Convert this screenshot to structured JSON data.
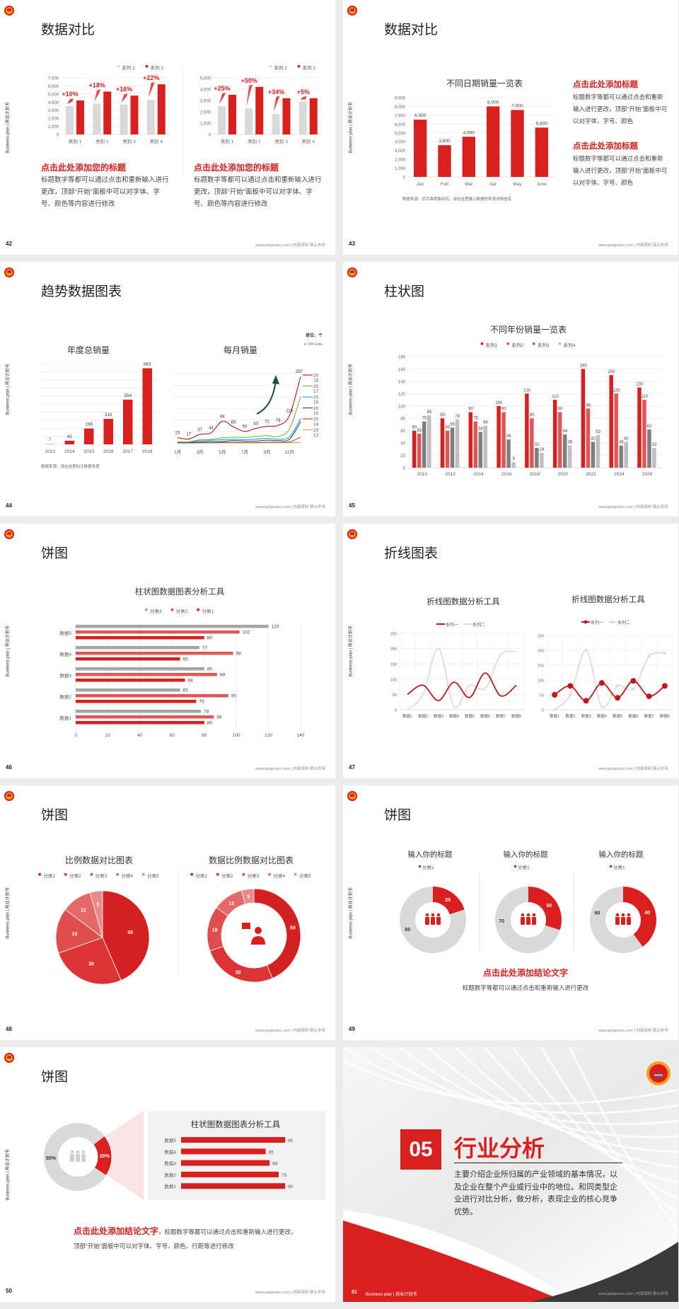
{
  "common": {
    "side_label": "Business plan | 商业计划书",
    "footer": "www.pptgenius.com | 内部资料 禁止外传"
  },
  "colors": {
    "red": "#d9201f",
    "red_mid": "#e35656",
    "gray_light": "#d9d9d9",
    "gray_dark": "#808080",
    "gray_mid": "#bfbfbf",
    "dark": "#3a3a3a"
  },
  "slides": [
    {
      "page": "42",
      "title": "数据对比",
      "left": {
        "heading": "点击此处添加您的标题",
        "body": "标题数字等都可以通过点击和重新输入进行更改，顶部“开始”面板中可以对字体、字号、颜色等内容进行修改"
      },
      "right": {
        "heading": "点击此处添加您的标题",
        "body": "标题数字等都可以通过点击和重新输入进行更改，顶部“开始”面板中可以对字体、字号、颜色等内容进行修改"
      }
    },
    {
      "page": "43",
      "title": "数据对比",
      "blocks": [
        {
          "heading": "点击此处添加标题",
          "body": "标题数字等都可以通过点击和重新输入进行更改，顶部“开始”面板中可以对字体、字号、颜色"
        },
        {
          "heading": "点击此处添加标题",
          "body": "标题数字等都可以通过点击和重新输入进行更改，顶部“开始”面板中可以对字体、字号、颜色"
        }
      ]
    },
    {
      "page": "44",
      "title": "趋势数据图表"
    },
    {
      "page": "45",
      "title": "柱状图"
    },
    {
      "page": "46",
      "title": "饼图"
    },
    {
      "page": "47",
      "title": "折线图表"
    },
    {
      "page": "48",
      "title": "饼图"
    },
    {
      "page": "49",
      "title": "饼图",
      "conclusion": "点击此处添加结论文字",
      "conclusion_body": "标题数字等都可以通过点击和重新输入进行更改"
    },
    {
      "page": "50",
      "title": "饼图",
      "conclusion": "点击此处添加结论文字",
      "conclusion_body": "，标题数字等都可以通过点击和重新输入进行更改，顶部“开始”面板中可以对字体、字号、颜色、行距等进行修改"
    },
    {
      "page": "51",
      "number": "05",
      "title": "行业分析",
      "body": "主要介绍企业所归属的产业领域的基本情况，以及企业在整个产业或行业中的地位。和同类型企业进行对比分析，做分析，表现企业的核心竞争优势。",
      "footer_left": "Business plan | 商业计划书"
    }
  ],
  "chart_data": [
    {
      "type": "bar",
      "categories": [
        "类别 1",
        "类别 2",
        "类别 3",
        "类别 4"
      ],
      "ylim": [
        0,
        7000
      ],
      "yticks": [
        "0",
        "1,000",
        "2,000",
        "3,000",
        "4,000",
        "5,000",
        "6,000",
        "7,000"
      ],
      "series": [
        {
          "name": "系列 1",
          "values": [
            3500,
            3800,
            3700,
            4300
          ]
        },
        {
          "name": "系列 2",
          "values": [
            4200,
            5300,
            4800,
            6200
          ]
        }
      ],
      "annotations": [
        "+10%",
        "+18%",
        "+16%",
        "+22%"
      ],
      "legend": "top-right"
    },
    {
      "type": "bar",
      "categories": [
        "类别 1",
        "类别 2",
        "类别 3",
        "类别 4"
      ],
      "ylim": [
        0,
        5000
      ],
      "yticks": [
        "0",
        "1,000",
        "2,000",
        "3,000",
        "4,000",
        "5,000"
      ],
      "series": [
        {
          "name": "系列 1",
          "values": [
            2500,
            2300,
            1800,
            2900
          ]
        },
        {
          "name": "系列 2",
          "values": [
            3500,
            4200,
            3200,
            3200
          ]
        }
      ],
      "annotations": [
        "+25%",
        "+50%",
        "+34%",
        "+5%"
      ],
      "legend": "top-right"
    },
    {
      "type": "bar",
      "title": "不同日期销量一览表",
      "categories": [
        "Jan",
        "Feb",
        "Mar",
        "Apr",
        "May",
        "June"
      ],
      "values": [
        6500,
        3600,
        4560,
        8000,
        7600,
        5600
      ],
      "labels": [
        "6,500",
        "3,600",
        "4,560",
        "8,000",
        "7,600",
        "5,600"
      ],
      "ylim": [
        0,
        9000
      ],
      "yticks": [
        "0",
        "1,000",
        "2,000",
        "3,000",
        "4,000",
        "5,000",
        "6,000",
        "7,000",
        "8,000",
        "9,000"
      ],
      "source": "数据来源：尼尔森零售研究，请在这里输入数据的来源详情信息"
    },
    {
      "type": "bar",
      "title": "年度总销量",
      "categories": [
        "2013",
        "2014",
        "2015",
        "2016",
        "2017",
        "2018"
      ],
      "values": [
        7,
        45,
        196,
        316,
        554,
        943
      ],
      "ylim": [
        0,
        1000
      ],
      "grid": true,
      "source": "数据来源：请在这里标注数据来源"
    },
    {
      "type": "line",
      "title": "每月销量",
      "unit": "单位：个",
      "unit_sub": "in '000 units",
      "xticks": [
        "1月",
        "3月",
        "5月",
        "7月",
        "9月",
        "11月"
      ],
      "ylim": [
        0,
        300
      ],
      "grid": true,
      "series": [
        {
          "name": "2018",
          "color": "#c0161c",
          "values": [
            23,
            17,
            37,
            44,
            94,
            69,
            50,
            63,
            72,
            76,
            118,
            287
          ]
        },
        {
          "name": "2017",
          "color": "#7ab648",
          "values": [
            5,
            5,
            14,
            16,
            22,
            25,
            24,
            28,
            32,
            28,
            60,
            200
          ]
        },
        {
          "name": "2016",
          "color": "#2aa3d8",
          "values": [
            4,
            4,
            10,
            12,
            14,
            16,
            14,
            16,
            20,
            16,
            26,
            105
          ]
        },
        {
          "name": "2015",
          "color": "#1d4e89",
          "values": [
            2,
            2,
            4,
            6,
            6,
            10,
            8,
            8,
            12,
            10,
            16,
            92
          ]
        },
        {
          "name": "2014",
          "color": "#a0522d",
          "values": [
            0,
            0,
            1,
            1,
            2,
            2,
            2,
            2,
            3,
            3,
            4,
            25
          ]
        },
        {
          "name": "2013",
          "color": "#f0a030",
          "values": [
            0,
            0,
            0,
            0,
            0,
            0,
            0,
            0,
            1,
            1,
            1,
            2
          ]
        }
      ],
      "legend": "right"
    },
    {
      "type": "bar",
      "title": "不同年份销量一览表",
      "categories": [
        "2010",
        "2012",
        "2014",
        "2016",
        "2018",
        "2020",
        "2022",
        "2024",
        "2026"
      ],
      "ylim": [
        0,
        180
      ],
      "yticks": [
        "0",
        "20",
        "40",
        "60",
        "80",
        "100",
        "120",
        "140",
        "160",
        "180"
      ],
      "series": [
        {
          "name": "系列1",
          "values": [
            60,
            80,
            90,
            100,
            120,
            110,
            160,
            150,
            130
          ]
        },
        {
          "name": "系列2",
          "values": [
            55,
            60,
            75,
            90,
            80,
            90,
            96,
            120,
            110
          ]
        },
        {
          "name": "系列3",
          "values": [
            75,
            65,
            58,
            46,
            32,
            54,
            42,
            36,
            62
          ]
        },
        {
          "name": "系列4",
          "values": [
            85,
            78,
            68,
            9,
            24,
            36,
            53,
            42,
            32
          ]
        }
      ],
      "legend": "top"
    },
    {
      "type": "bar",
      "orientation": "horizontal",
      "title": "柱状图数据图表分析工具",
      "categories": [
        "数据1",
        "数据2",
        "数据3",
        "数据4",
        "数据5"
      ],
      "xlim": [
        0,
        140
      ],
      "xticks": [
        "0",
        "20",
        "40",
        "60",
        "80",
        "100",
        "120",
        "140"
      ],
      "series": [
        {
          "name": "分类3",
          "values": [
            78,
            65,
            80,
            77,
            120
          ]
        },
        {
          "name": "分类2",
          "values": [
            86,
            95,
            88,
            98,
            102
          ]
        },
        {
          "name": "分类1",
          "values": [
            80,
            75,
            68,
            65,
            80
          ]
        }
      ],
      "legend": "top"
    },
    {
      "type": "line",
      "title": "折线图数据分析工具",
      "categories": [
        "数据1",
        "数据2",
        "数据3",
        "数据4",
        "数据5",
        "数据6",
        "数据7",
        "数据8"
      ],
      "ylim": [
        0,
        250
      ],
      "yticks": [
        "0",
        "50",
        "100",
        "150",
        "200",
        "250"
      ],
      "series": [
        {
          "name": "系列一",
          "values": [
            50,
            80,
            30,
            90,
            40,
            120,
            45,
            80
          ]
        },
        {
          "name": "系列二",
          "values": [
            0,
            50,
            200,
            10,
            80,
            70,
            180,
            190
          ]
        }
      ],
      "legend": "top"
    },
    {
      "type": "line",
      "title": "折线图数据分析工具",
      "categories": [
        "数据1",
        "数据2",
        "数据3",
        "数据4",
        "数据5",
        "数据6",
        "数据7",
        "数据8"
      ],
      "ylim": [
        0,
        250
      ],
      "yticks": [
        "0",
        "50",
        "100",
        "150",
        "200",
        "250"
      ],
      "markers": true,
      "series": [
        {
          "name": "系列一",
          "values": [
            50,
            80,
            30,
            90,
            40,
            97,
            45,
            80
          ]
        },
        {
          "name": "系列二",
          "values": [
            0,
            50,
            200,
            10,
            80,
            70,
            180,
            190
          ]
        }
      ],
      "legend": "top"
    },
    {
      "type": "pie",
      "title": "比例数据对比图表",
      "categories": [
        "分类1",
        "分类2",
        "分类3",
        "分类4",
        "分类5"
      ],
      "values": [
        50,
        30,
        18,
        12,
        5
      ]
    },
    {
      "type": "pie",
      "donut": true,
      "title": "数据比例数据对比图表",
      "categories": [
        "分类1",
        "分类2",
        "分类3",
        "分类4",
        "分类5"
      ],
      "values": [
        50,
        30,
        18,
        12,
        5
      ]
    },
    {
      "type": "pie",
      "donut": true,
      "title": "输入你的标题",
      "legend_label": "分类1",
      "values": [
        20,
        80
      ]
    },
    {
      "type": "pie",
      "donut": true,
      "title": "输入你的标题",
      "legend_label": "分类1",
      "values": [
        30,
        70
      ]
    },
    {
      "type": "pie",
      "donut": true,
      "title": "输入你的标题",
      "legend_label": "分类1",
      "values": [
        40,
        60
      ]
    },
    {
      "type": "pie",
      "donut": true,
      "values": [
        20,
        80
      ],
      "labels": [
        "20%",
        "80%"
      ]
    },
    {
      "type": "bar",
      "orientation": "horizontal",
      "title": "柱状图数据图表分析工具",
      "categories": [
        "数据5",
        "数据4",
        "数据3",
        "数据2",
        "数据1"
      ],
      "values": [
        80,
        65,
        68,
        75,
        80
      ]
    }
  ]
}
